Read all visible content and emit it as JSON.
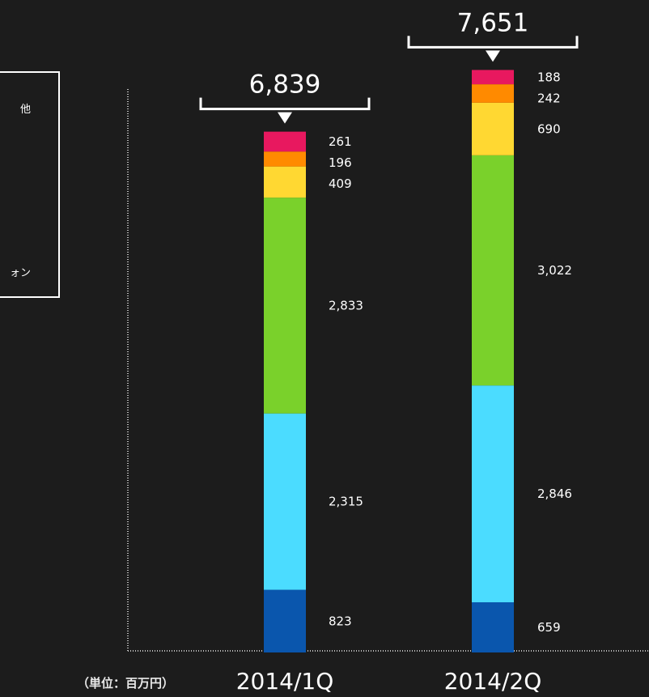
{
  "legend": {
    "items": [
      "他",
      "ォン"
    ]
  },
  "unit_label": "（単位：百万円）",
  "colors": {
    "background": "#1c1c1c",
    "seg0": "#0a56ad",
    "seg1": "#4bdcff",
    "seg2": "#7ad12b",
    "seg3": "#ffd832",
    "seg4": "#ff8a00",
    "seg5": "#e8185f"
  },
  "chart_data": {
    "type": "bar",
    "stacked": true,
    "categories": [
      "2014/1Q",
      "2014/2Q"
    ],
    "totals": [
      "6,839",
      "7,651"
    ],
    "series": [
      {
        "values": [
          823,
          659
        ],
        "labels": [
          "823",
          "659"
        ],
        "color": "#0a56ad"
      },
      {
        "values": [
          2315,
          2846
        ],
        "labels": [
          "2,315",
          "2,846"
        ],
        "color": "#4bdcff"
      },
      {
        "values": [
          2833,
          3022
        ],
        "labels": [
          "2,833",
          "3,022"
        ],
        "color": "#7ad12b"
      },
      {
        "values": [
          409,
          690
        ],
        "labels": [
          "409",
          "690"
        ],
        "color": "#ffd832"
      },
      {
        "values": [
          196,
          242
        ],
        "labels": [
          "196",
          "242"
        ],
        "color": "#ff8a00"
      },
      {
        "values": [
          261,
          188
        ],
        "labels": [
          "261",
          "188"
        ],
        "color": "#e8185f"
      }
    ]
  }
}
